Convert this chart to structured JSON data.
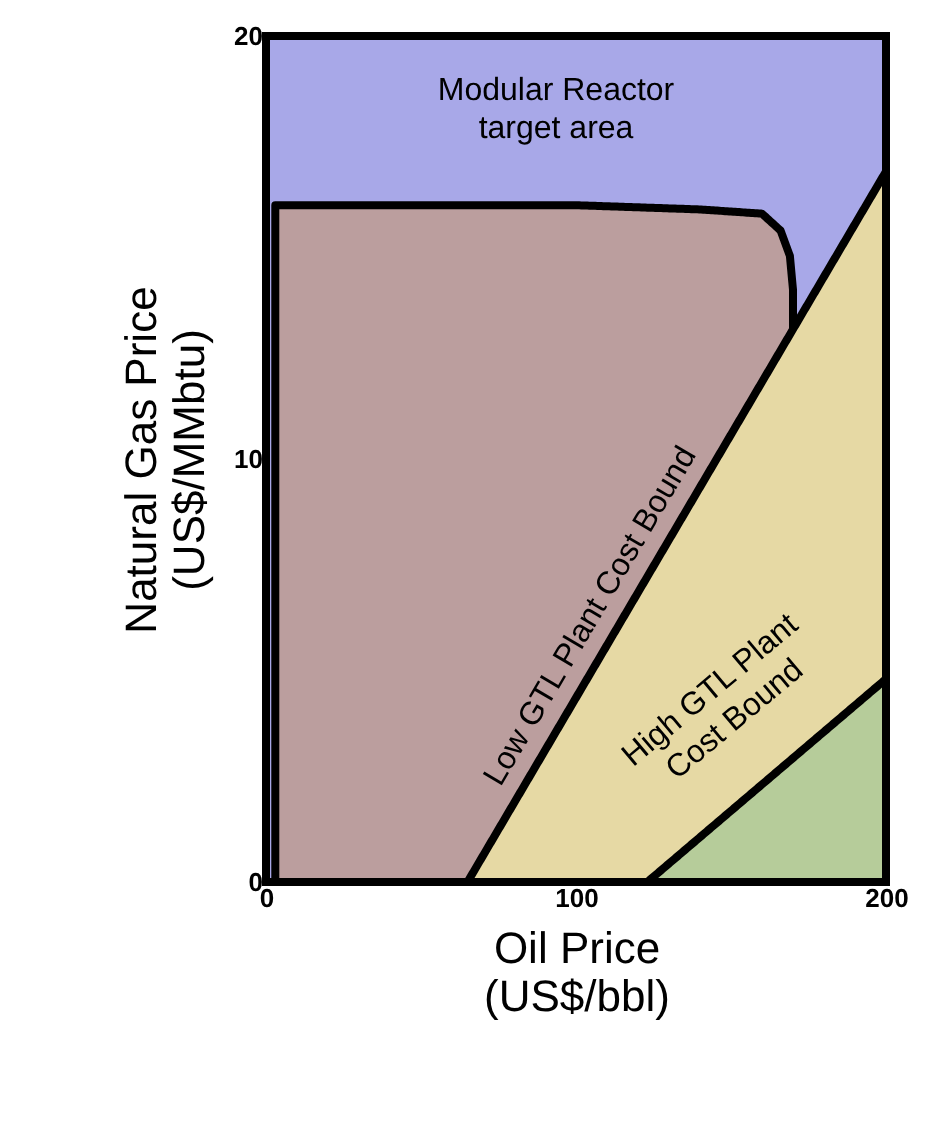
{
  "chart_data": {
    "type": "area",
    "xlabel": "Oil Price\n(US$/bbl)",
    "ylabel": "Natural Gas Price\n(US$/MMbtu)",
    "xlim": [
      0,
      200
    ],
    "ylim": [
      0,
      20
    ],
    "xticks": [
      0,
      100,
      200
    ],
    "yticks": [
      0,
      10,
      20
    ],
    "line_style": "solid",
    "series": [
      {
        "color": "#a8a8e8",
        "x": [
          0,
          200
        ],
        "values": [
          20,
          20
        ]
      },
      {
        "color": "#bb9e9e",
        "x": [
          3,
          100,
          140,
          160,
          166,
          169,
          170
        ],
        "values": [
          16,
          16,
          15.9,
          15.8,
          15.4,
          14.8,
          14
        ]
      },
      {
        "color": "#e6d9a4",
        "x": [
          65,
          200
        ],
        "values": [
          0,
          16.8
        ]
      },
      {
        "color": "#b6cc9a",
        "x": [
          123,
          200
        ],
        "values": [
          0,
          4.8
        ]
      }
    ],
    "annotations": [
      "Modular Reactor\ntarget area",
      "Low GTL Plant Cost Bound",
      "High GTL Plant\nCost Bound"
    ]
  }
}
